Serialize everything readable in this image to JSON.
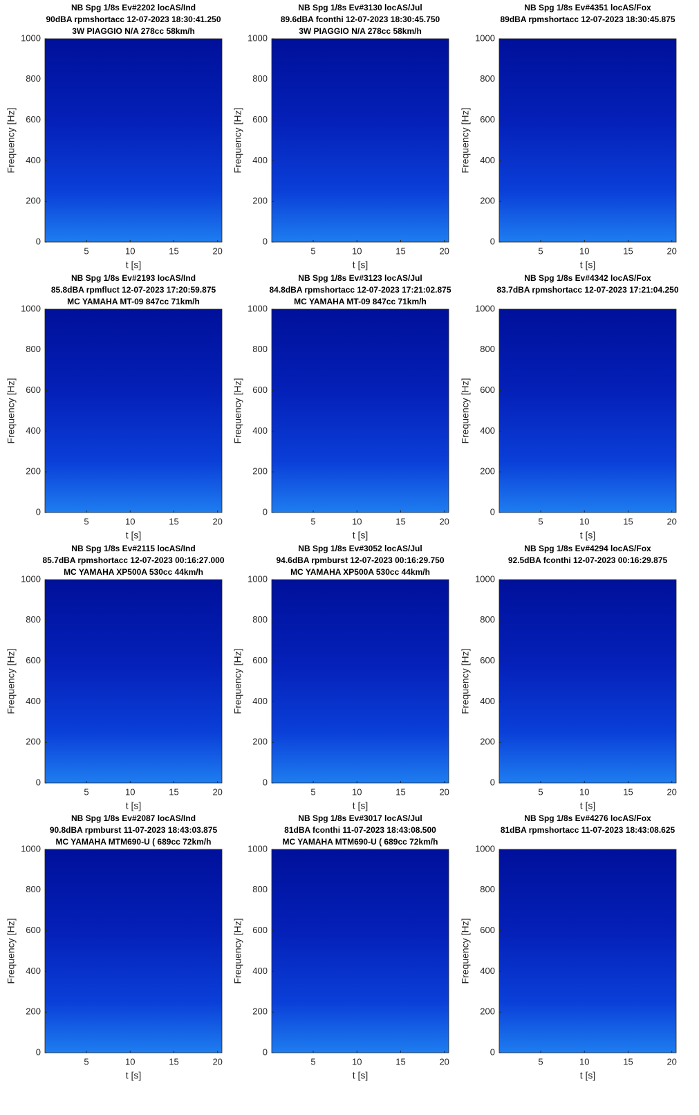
{
  "chart_data": [
    {
      "type": "spectrogram",
      "title": [
        "NB Spg 1/8s Ev#2202 locAS/Ind",
        "90dBA rpmshortacc 12-07-2023 18:30:41.250",
        "3W PIAGGIO N/A 278cc 58km/h"
      ],
      "xlabel": "t [s]",
      "ylabel": "Frequency [Hz]",
      "xlim": [
        0.25,
        20.5
      ],
      "ylim": [
        0,
        1000
      ],
      "xticks": [
        5,
        10,
        15,
        20
      ],
      "yticks": [
        0,
        200,
        400,
        600,
        800,
        1000
      ]
    },
    {
      "type": "spectrogram",
      "title": [
        "NB Spg 1/8s Ev#3130 locAS/Jul",
        "89.6dBA fconthi 12-07-2023 18:30:45.750",
        "3W PIAGGIO N/A 278cc 58km/h"
      ],
      "xlabel": "t [s]",
      "ylabel": "Frequency [Hz]",
      "xlim": [
        0.25,
        20.5
      ],
      "ylim": [
        0,
        1000
      ],
      "xticks": [
        5,
        10,
        15,
        20
      ],
      "yticks": [
        0,
        200,
        400,
        600,
        800,
        1000
      ]
    },
    {
      "type": "spectrogram",
      "title": [
        "NB Spg 1/8s Ev#4351 locAS/Fox",
        "89dBA rpmshortacc 12-07-2023 18:30:45.875"
      ],
      "xlabel": "t [s]",
      "ylabel": "Frequency [Hz]",
      "xlim": [
        0.25,
        20.5
      ],
      "ylim": [
        0,
        1000
      ],
      "xticks": [
        5,
        10,
        15,
        20
      ],
      "yticks": [
        0,
        200,
        400,
        600,
        800,
        1000
      ]
    },
    {
      "type": "spectrogram",
      "title": [
        "NB Spg 1/8s Ev#2193 locAS/Ind",
        "85.8dBA rpmfluct 12-07-2023 17:20:59.875",
        "MC YAMAHA MT-09 847cc 71km/h"
      ],
      "xlabel": "t [s]",
      "ylabel": "Frequency [Hz]",
      "xlim": [
        0.25,
        20.5
      ],
      "ylim": [
        0,
        1000
      ],
      "xticks": [
        5,
        10,
        15,
        20
      ],
      "yticks": [
        0,
        200,
        400,
        600,
        800,
        1000
      ]
    },
    {
      "type": "spectrogram",
      "title": [
        "NB Spg 1/8s Ev#3123 locAS/Jul",
        "84.8dBA rpmshortacc 12-07-2023 17:21:02.875",
        "MC YAMAHA MT-09 847cc 71km/h"
      ],
      "xlabel": "t [s]",
      "ylabel": "Frequency [Hz]",
      "xlim": [
        0.25,
        20.5
      ],
      "ylim": [
        0,
        1000
      ],
      "xticks": [
        5,
        10,
        15,
        20
      ],
      "yticks": [
        0,
        200,
        400,
        600,
        800,
        1000
      ]
    },
    {
      "type": "spectrogram",
      "title": [
        "NB Spg 1/8s Ev#4342 locAS/Fox",
        "83.7dBA rpmshortacc 12-07-2023 17:21:04.250"
      ],
      "xlabel": "t [s]",
      "ylabel": "Frequency [Hz]",
      "xlim": [
        0.25,
        20.5
      ],
      "ylim": [
        0,
        1000
      ],
      "xticks": [
        5,
        10,
        15,
        20
      ],
      "yticks": [
        0,
        200,
        400,
        600,
        800,
        1000
      ]
    },
    {
      "type": "spectrogram",
      "title": [
        "NB Spg 1/8s Ev#2115 locAS/Ind",
        "85.7dBA rpmshortacc 12-07-2023 00:16:27.000",
        "MC YAMAHA XP500A 530cc 44km/h"
      ],
      "xlabel": "t [s]",
      "ylabel": "Frequency [Hz]",
      "xlim": [
        0.25,
        20.5
      ],
      "ylim": [
        0,
        1000
      ],
      "xticks": [
        5,
        10,
        15,
        20
      ],
      "yticks": [
        0,
        200,
        400,
        600,
        800,
        1000
      ]
    },
    {
      "type": "spectrogram",
      "title": [
        "NB Spg 1/8s Ev#3052 locAS/Jul",
        "94.6dBA rpmburst 12-07-2023 00:16:29.750",
        "MC YAMAHA XP500A 530cc 44km/h"
      ],
      "xlabel": "t [s]",
      "ylabel": "Frequency [Hz]",
      "xlim": [
        0.25,
        20.5
      ],
      "ylim": [
        0,
        1000
      ],
      "xticks": [
        5,
        10,
        15,
        20
      ],
      "yticks": [
        0,
        200,
        400,
        600,
        800,
        1000
      ]
    },
    {
      "type": "spectrogram",
      "title": [
        "NB Spg 1/8s Ev#4294 locAS/Fox",
        "92.5dBA fconthi 12-07-2023 00:16:29.875"
      ],
      "xlabel": "t [s]",
      "ylabel": "Frequency [Hz]",
      "xlim": [
        0.25,
        20.5
      ],
      "ylim": [
        0,
        1000
      ],
      "xticks": [
        5,
        10,
        15,
        20
      ],
      "yticks": [
        0,
        200,
        400,
        600,
        800,
        1000
      ]
    },
    {
      "type": "spectrogram",
      "title": [
        "NB Spg 1/8s Ev#2087 locAS/Ind",
        "90.8dBA rpmburst 11-07-2023 18:43:03.875",
        "MC YAMAHA MTM690-U ( 689cc 72km/h"
      ],
      "xlabel": "t [s]",
      "ylabel": "Frequency [Hz]",
      "xlim": [
        0.25,
        20.5
      ],
      "ylim": [
        0,
        1000
      ],
      "xticks": [
        5,
        10,
        15,
        20
      ],
      "yticks": [
        0,
        200,
        400,
        600,
        800,
        1000
      ]
    },
    {
      "type": "spectrogram",
      "title": [
        "NB Spg 1/8s Ev#3017 locAS/Jul",
        "81dBA fconthi 11-07-2023 18:43:08.500",
        "MC YAMAHA MTM690-U ( 689cc 72km/h"
      ],
      "xlabel": "t [s]",
      "ylabel": "Frequency [Hz]",
      "xlim": [
        0.25,
        20.5
      ],
      "ylim": [
        0,
        1000
      ],
      "xticks": [
        5,
        10,
        15,
        20
      ],
      "yticks": [
        0,
        200,
        400,
        600,
        800,
        1000
      ]
    },
    {
      "type": "spectrogram",
      "title": [
        "NB Spg 1/8s Ev#4276 locAS/Fox",
        "81dBA rpmshortacc 11-07-2023 18:43:08.625"
      ],
      "xlabel": "t [s]",
      "ylabel": "Frequency [Hz]",
      "xlim": [
        0.25,
        20.5
      ],
      "ylim": [
        0,
        1000
      ],
      "xticks": [
        5,
        10,
        15,
        20
      ],
      "yticks": [
        0,
        200,
        400,
        600,
        800,
        1000
      ]
    }
  ]
}
